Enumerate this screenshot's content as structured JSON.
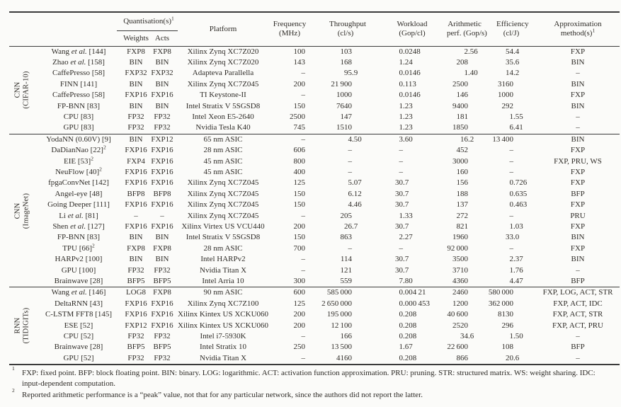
{
  "colors": {
    "background": "#fbfbf9",
    "text": "#2f2c28",
    "rule": "#3b3b3b"
  },
  "table": {
    "headers": {
      "quant_group": "Quantisation(s)^1",
      "weights": "Weights",
      "acts": "Acts",
      "platform": "Platform",
      "frequency": [
        "Frequency",
        "(MHz)"
      ],
      "throughput": [
        "Throughput",
        "(cl/s)"
      ],
      "workload": [
        "Workload",
        "(Gop/cl)"
      ],
      "arith_perf": [
        "Arithmetic",
        "perf. (Gop/s)"
      ],
      "efficiency": [
        "Efficiency",
        "(cl/J)"
      ],
      "approx": [
        "Approximation",
        "method(s)^1"
      ]
    },
    "sections": [
      {
        "label": [
          "CNN",
          "(CIFAR-10)"
        ],
        "rows": [
          [
            "Wang *et al.* [144]",
            "FXP8",
            "FXP8",
            "Xilinx Zynq XC7Z020",
            "100",
            "103",
            "0.0248",
            "2.56",
            "54.4",
            "FXP"
          ],
          [
            "Zhao *et al.* [158]",
            "BIN",
            "BIN",
            "Xilinx Zynq XC7Z020",
            "143",
            "168",
            "1.24",
            "208",
            "35.6",
            "BIN"
          ],
          [
            "CaffePresso [58]",
            "FXP32",
            "FXP32",
            "Adapteva Parallella",
            "–",
            "95.9",
            "0.0146",
            "1.40",
            "14.2",
            "–"
          ],
          [
            "FINN [141]",
            "BIN",
            "BIN",
            "Xilinx Zynq XC7Z045",
            "200",
            "21 900",
            "0.113",
            "2500",
            "3160",
            "BIN"
          ],
          [
            "CaffePresso [58]",
            "FXP16",
            "FXP16",
            "TI Keystone-II",
            "–",
            "1000",
            "0.0146",
            "146",
            "1000",
            "FXP"
          ],
          [
            "FP-BNN [83]",
            "BIN",
            "BIN",
            "Intel Stratix V 5SGSD8",
            "150",
            "7640",
            "1.23",
            "9400",
            "292",
            "BIN"
          ],
          [
            "CPU [83]",
            "FP32",
            "FP32",
            "Intel Xeon E5-2640",
            "2500",
            "147",
            "1.23",
            "181",
            "1.55",
            "–"
          ],
          [
            "GPU [83]",
            "FP32",
            "FP32",
            "Nvidia Tesla K40",
            "745",
            "1510",
            "1.23",
            "1850",
            "6.41",
            "–"
          ]
        ]
      },
      {
        "label": [
          "CNN",
          "(ImageNet)"
        ],
        "rows": [
          [
            "YodaNN (0.60V) [9]",
            "BIN",
            "FXP12",
            "65 nm ASIC",
            "–",
            "4.50",
            "3.60",
            "16.2",
            "13 400",
            "BIN"
          ],
          [
            "DaDianNao [22]^2",
            "FXP16",
            "FXP16",
            "28 nm ASIC",
            "606",
            "–",
            "–",
            "452",
            "–",
            "FXP"
          ],
          [
            "EIE [53]^2",
            "FXP4",
            "FXP16",
            "45 nm ASIC",
            "800",
            "–",
            "–",
            "3000",
            "–",
            "FXP, PRU, WS"
          ],
          [
            "NeuFlow [40]^2",
            "FXP16",
            "FXP16",
            "45 nm ASIC",
            "400",
            "–",
            "–",
            "160",
            "–",
            "FXP"
          ],
          [
            "fpgaConvNet [142]",
            "FXP16",
            "FXP16",
            "Xilinx Zynq XC7Z045",
            "125",
            "5.07",
            "30.7",
            "156",
            "0.726",
            "FXP"
          ],
          [
            "Angel-eye [48]",
            "BFP8",
            "BFP8",
            "Xilinx Zynq XC7Z045",
            "150",
            "6.12",
            "30.7",
            "188",
            "0.635",
            "BFP"
          ],
          [
            "Going Deeper [111]",
            "FXP16",
            "FXP16",
            "Xilinx Zynq XC7Z045",
            "150",
            "4.46",
            "30.7",
            "137",
            "0.463",
            "FXP"
          ],
          [
            "Li *et al.* [81]",
            "–",
            "–",
            "Xilinx Zynq XC7Z045",
            "–",
            "205",
            "1.33",
            "272",
            "–",
            "PRU"
          ],
          [
            "Shen *et al.* [127]",
            "FXP16",
            "FXP16",
            "Xilinx Virtex US VCU440",
            "200",
            "26.7",
            "30.7",
            "821",
            "1.03",
            "FXP"
          ],
          [
            "FP-BNN [83]",
            "BIN",
            "BIN",
            "Intel Stratix V 5SGSD8",
            "150",
            "863",
            "2.27",
            "1960",
            "33.0",
            "BIN"
          ],
          [
            "TPU [66]^2",
            "FXP8",
            "FXP8",
            "28 nm ASIC",
            "700",
            "–",
            "–",
            "92 000",
            "–",
            "FXP"
          ],
          [
            "HARPv2 [100]",
            "BIN",
            "BIN",
            "Intel HARPv2",
            "–",
            "114",
            "30.7",
            "3500",
            "2.37",
            "BIN"
          ],
          [
            "GPU [100]",
            "FP32",
            "FP32",
            "Nvidia Titan X",
            "–",
            "121",
            "30.7",
            "3710",
            "1.76",
            "–"
          ],
          [
            "Brainwave [28]",
            "BFP5",
            "BFP5",
            "Intel Arria 10",
            "300",
            "559",
            "7.80",
            "4360",
            "4.47",
            "BFP"
          ]
        ]
      },
      {
        "label": [
          "RNN",
          "(TIDIGITs)"
        ],
        "rows": [
          [
            "Wang *et al.* [146]",
            "LOG8",
            "FXP8",
            "90 nm ASIC",
            "600",
            "585 000",
            "0.004 21",
            "2460",
            "580 000",
            "FXP, LOG, ACT, STR"
          ],
          [
            "DeltaRNN [43]",
            "FXP16",
            "FXP16",
            "Xilinx Zynq XC7Z100",
            "125",
            "2 650 000",
            "0.000 453",
            "1200",
            "362 000",
            "FXP, ACT, IDC"
          ],
          [
            "C-LSTM FFT8 [145]",
            "FXP16",
            "FXP16",
            "Xilinx Kintex US XCKU060",
            "200",
            "195 000",
            "0.208",
            "40 600",
            "8130",
            "FXP, ACT, STR"
          ],
          [
            "ESE [52]",
            "FXP12",
            "FXP16",
            "Xilinx Kintex US XCKU060",
            "200",
            "12 100",
            "0.208",
            "2520",
            "296",
            "FXP, ACT, PRU"
          ],
          [
            "CPU [52]",
            "FP32",
            "FP32",
            "Intel i7-5930K",
            "–",
            "166",
            "0.208",
            "34.6",
            "1.50",
            "–"
          ],
          [
            "Brainwave [28]",
            "BFP5",
            "BFP5",
            "Intel Stratix 10",
            "250",
            "13 500",
            "1.67",
            "22 600",
            "108",
            "BFP"
          ],
          [
            "GPU [52]",
            "FP32",
            "FP32",
            "Nvidia Titan X",
            "–",
            "4160",
            "0.208",
            "866",
            "20.6",
            "–"
          ]
        ]
      }
    ],
    "footnotes": [
      {
        "mark": "1",
        "text": "FXP: fixed point. BFP: block floating point. BIN: binary. LOG: logarithmic. ACT: activation function approximation. PRU: pruning. STR: structured matrix. WS: weight sharing. IDC: input-dependent computation."
      },
      {
        "mark": "2",
        "text": "Reported arithmetic performance is a “peak” value, not that for any particular network, since the authors did not report the latter."
      }
    ]
  }
}
